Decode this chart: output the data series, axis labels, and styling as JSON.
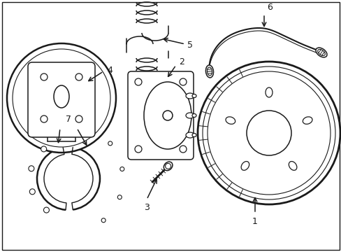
{
  "background_color": "#ffffff",
  "line_color": "#1a1a1a",
  "figsize": [
    4.89,
    3.6
  ],
  "dpi": 100,
  "xlim": [
    0,
    489
  ],
  "ylim": [
    0,
    360
  ]
}
